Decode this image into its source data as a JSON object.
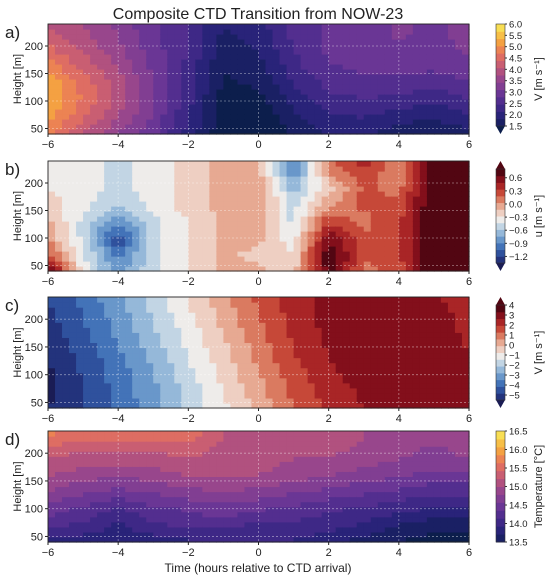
{
  "figure": {
    "title": "Composite CTD Transition from NOW-23",
    "xlabel": "Time (hours relative to CTD arrival)"
  },
  "chart_data": [
    {
      "type": "heatmap",
      "panel": "a)",
      "ylabel": "Height [m]",
      "x_ticks": [
        "−6",
        "−4",
        "−2",
        "0",
        "2",
        "4",
        "6"
      ],
      "y_ticks": [
        "50",
        "100",
        "150",
        "200"
      ],
      "xlim": [
        -6,
        6
      ],
      "ylim": [
        40,
        240
      ],
      "grid": true,
      "colorbar": {
        "label": "V [m s⁻¹]",
        "ticks": [
          "6.0",
          "5.5",
          "5.0",
          "4.5",
          "4.0",
          "3.5",
          "3.0",
          "2.5",
          "2.0",
          "1.5"
        ],
        "range": [
          1.5,
          6.0
        ],
        "extend": "min",
        "colormap": "plasma-like"
      },
      "x": [
        -6,
        -5,
        -4,
        -3,
        -2,
        -1,
        0,
        1,
        2,
        3,
        4,
        5,
        6
      ],
      "z": [
        40,
        70,
        100,
        130,
        160,
        190,
        220,
        240
      ],
      "values": [
        [
          5.0,
          4.2,
          3.6,
          3.0,
          2.2,
          1.4,
          1.2,
          1.7,
          2.0,
          2.0,
          1.8,
          1.7,
          1.9
        ],
        [
          5.3,
          4.6,
          3.9,
          3.2,
          2.3,
          1.5,
          1.3,
          1.9,
          2.2,
          2.3,
          2.1,
          2.0,
          2.2
        ],
        [
          5.6,
          4.8,
          4.1,
          3.3,
          2.4,
          1.5,
          1.5,
          2.1,
          2.5,
          2.6,
          2.5,
          2.3,
          2.6
        ],
        [
          5.5,
          4.8,
          4.1,
          3.3,
          2.5,
          1.6,
          1.7,
          2.3,
          2.7,
          2.8,
          2.8,
          2.7,
          2.9
        ],
        [
          5.1,
          4.5,
          3.9,
          3.2,
          2.5,
          1.7,
          1.8,
          2.5,
          2.9,
          3.0,
          3.1,
          3.0,
          3.2
        ],
        [
          4.7,
          4.2,
          3.7,
          3.1,
          2.6,
          1.8,
          2.0,
          2.6,
          3.0,
          3.1,
          3.2,
          3.1,
          3.3
        ],
        [
          4.4,
          4.0,
          3.6,
          3.0,
          2.6,
          1.9,
          2.1,
          2.7,
          3.0,
          3.1,
          3.3,
          3.2,
          3.4
        ],
        [
          4.2,
          3.9,
          3.5,
          3.0,
          2.6,
          2.0,
          2.2,
          2.7,
          3.0,
          3.1,
          3.3,
          3.2,
          3.4
        ]
      ]
    },
    {
      "type": "heatmap",
      "panel": "b)",
      "ylabel": "Height [m]",
      "x_ticks": [
        "−6",
        "−4",
        "−2",
        "0",
        "2",
        "4",
        "6"
      ],
      "y_ticks": [
        "50",
        "100",
        "150",
        "200"
      ],
      "xlim": [
        -6,
        6
      ],
      "ylim": [
        40,
        240
      ],
      "grid": true,
      "colorbar": {
        "label": "u [m s⁻¹]",
        "ticks": [
          "0.6",
          "0.3",
          "0.0",
          "−0.3",
          "−0.6",
          "−0.9",
          "−1.2"
        ],
        "range": [
          -1.35,
          0.8
        ],
        "extend": "both",
        "colormap": "RdBu-like"
      },
      "x": [
        -6,
        -5,
        -4,
        -3,
        -2,
        -1,
        0,
        1,
        2,
        3,
        4,
        5,
        6
      ],
      "z": [
        40,
        70,
        100,
        130,
        160,
        190,
        220,
        240
      ],
      "values": [
        [
          0.8,
          -0.3,
          -0.7,
          -0.4,
          -0.2,
          0.0,
          0.0,
          -0.1,
          0.8,
          0.2,
          0.3,
          0.9,
          1.0
        ],
        [
          0.3,
          -0.3,
          -0.9,
          -0.4,
          -0.2,
          0.0,
          -0.1,
          -0.2,
          0.9,
          0.3,
          0.4,
          0.9,
          1.0
        ],
        [
          0.1,
          -0.4,
          -1.1,
          -0.4,
          -0.2,
          0.0,
          0.0,
          -0.3,
          0.7,
          0.3,
          0.4,
          0.9,
          1.0
        ],
        [
          0.0,
          -0.4,
          -0.8,
          -0.4,
          -0.2,
          0.0,
          0.0,
          -0.4,
          0.4,
          0.2,
          0.4,
          0.9,
          1.0
        ],
        [
          -0.1,
          -0.3,
          -0.5,
          -0.3,
          -0.1,
          0.0,
          0.1,
          -0.4,
          0.1,
          0.3,
          0.3,
          0.9,
          1.0
        ],
        [
          -0.2,
          -0.3,
          -0.4,
          -0.3,
          -0.1,
          0.0,
          0.1,
          -0.6,
          -0.1,
          0.3,
          0.2,
          0.9,
          1.0
        ],
        [
          -0.2,
          -0.3,
          -0.4,
          -0.3,
          -0.1,
          0.0,
          0.0,
          -0.8,
          0.1,
          0.4,
          0.1,
          0.9,
          1.0
        ],
        [
          -0.2,
          -0.3,
          -0.4,
          -0.3,
          -0.1,
          0.0,
          0.0,
          -0.9,
          0.2,
          0.5,
          0.1,
          0.9,
          1.0
        ]
      ]
    },
    {
      "type": "heatmap",
      "panel": "c)",
      "ylabel": "Height [m]",
      "x_ticks": [
        "−6",
        "−4",
        "−2",
        "0",
        "2",
        "4",
        "6"
      ],
      "y_ticks": [
        "50",
        "100",
        "150",
        "200"
      ],
      "xlim": [
        -6,
        6
      ],
      "ylim": [
        40,
        240
      ],
      "grid": true,
      "colorbar": {
        "label": "V [m s⁻¹]",
        "ticks": [
          "4",
          "3",
          "2",
          "1",
          "0",
          "−1",
          "−2",
          "−3",
          "−4",
          "−5"
        ],
        "range": [
          -5.5,
          4.0
        ],
        "extend": "both",
        "colormap": "RdBu-like"
      },
      "x": [
        -6,
        -5,
        -4,
        -3,
        -2,
        -1,
        0,
        1,
        2,
        3,
        4,
        5,
        6
      ],
      "z": [
        40,
        70,
        100,
        130,
        160,
        190,
        220,
        240
      ],
      "values": [
        [
          -5.2,
          -4.5,
          -3.7,
          -2.7,
          -1.6,
          -0.6,
          0.5,
          1.6,
          2.4,
          3.0,
          3.4,
          3.5,
          3.2
        ],
        [
          -5.3,
          -4.5,
          -3.6,
          -2.6,
          -1.5,
          -0.4,
          0.7,
          1.8,
          2.6,
          3.1,
          3.5,
          3.6,
          3.2
        ],
        [
          -5.3,
          -4.4,
          -3.5,
          -2.5,
          -1.3,
          -0.2,
          0.9,
          2.0,
          2.8,
          3.3,
          3.6,
          3.6,
          3.1
        ],
        [
          -5.2,
          -4.3,
          -3.3,
          -2.3,
          -1.1,
          0.0,
          1.1,
          2.2,
          3.0,
          3.4,
          3.6,
          3.5,
          3.0
        ],
        [
          -5.0,
          -4.1,
          -3.1,
          -2.0,
          -0.9,
          0.2,
          1.3,
          2.4,
          3.1,
          3.5,
          3.6,
          3.4,
          2.9
        ],
        [
          -4.8,
          -3.9,
          -2.9,
          -1.8,
          -0.7,
          0.4,
          1.5,
          2.5,
          3.2,
          3.5,
          3.5,
          3.3,
          2.8
        ],
        [
          -4.6,
          -3.7,
          -2.7,
          -1.6,
          -0.5,
          0.6,
          1.7,
          2.6,
          3.2,
          3.5,
          3.5,
          3.2,
          2.7
        ],
        [
          -4.5,
          -3.6,
          -2.6,
          -1.5,
          -0.4,
          0.7,
          1.8,
          2.7,
          3.3,
          3.5,
          3.4,
          3.1,
          2.6
        ]
      ]
    },
    {
      "type": "heatmap",
      "panel": "d)",
      "ylabel": "Height [m]",
      "x_ticks": [
        "−6",
        "−4",
        "−2",
        "0",
        "2",
        "4",
        "6"
      ],
      "y_ticks": [
        "50",
        "100",
        "150",
        "200"
      ],
      "xlim": [
        -6,
        6
      ],
      "ylim": [
        40,
        240
      ],
      "grid": true,
      "colorbar": {
        "label": "Temperature [°C]",
        "ticks": [
          "16.5",
          "16.0",
          "15.5",
          "15.0",
          "14.5",
          "14.0",
          "13.5"
        ],
        "range": [
          13.5,
          16.5
        ],
        "extend": "neither",
        "colormap": "plasma-like"
      },
      "x": [
        -6,
        -5,
        -4,
        -3,
        -2,
        -1,
        0,
        1,
        2,
        3,
        4,
        5,
        6
      ],
      "z": [
        40,
        70,
        100,
        130,
        160,
        190,
        220,
        240
      ],
      "values": [
        [
          13.9,
          13.9,
          13.9,
          13.9,
          14.0,
          14.1,
          14.1,
          14.0,
          13.9,
          13.7,
          13.6,
          13.5,
          13.5
        ],
        [
          14.3,
          14.2,
          14.0,
          14.2,
          14.3,
          14.3,
          14.2,
          14.2,
          14.1,
          14.0,
          13.8,
          13.7,
          13.7
        ],
        [
          14.6,
          14.4,
          14.2,
          14.4,
          14.5,
          14.6,
          14.5,
          14.4,
          14.3,
          14.2,
          14.1,
          14.0,
          14.0
        ],
        [
          14.9,
          14.7,
          14.6,
          14.7,
          14.8,
          14.9,
          14.8,
          14.7,
          14.6,
          14.5,
          14.4,
          14.3,
          14.3
        ],
        [
          15.1,
          15.0,
          14.9,
          15.0,
          15.1,
          15.1,
          15.1,
          15.0,
          14.9,
          14.8,
          14.7,
          14.6,
          14.6
        ],
        [
          15.3,
          15.2,
          15.2,
          15.2,
          15.3,
          15.2,
          15.2,
          15.1,
          15.1,
          15.0,
          14.9,
          14.8,
          14.9
        ],
        [
          15.6,
          15.5,
          15.5,
          15.5,
          15.5,
          15.3,
          15.2,
          15.2,
          15.2,
          15.1,
          15.0,
          14.9,
          15.0
        ],
        [
          15.8,
          15.8,
          15.8,
          15.8,
          15.7,
          15.3,
          15.2,
          15.2,
          15.2,
          15.1,
          15.0,
          14.9,
          15.0
        ]
      ]
    }
  ]
}
